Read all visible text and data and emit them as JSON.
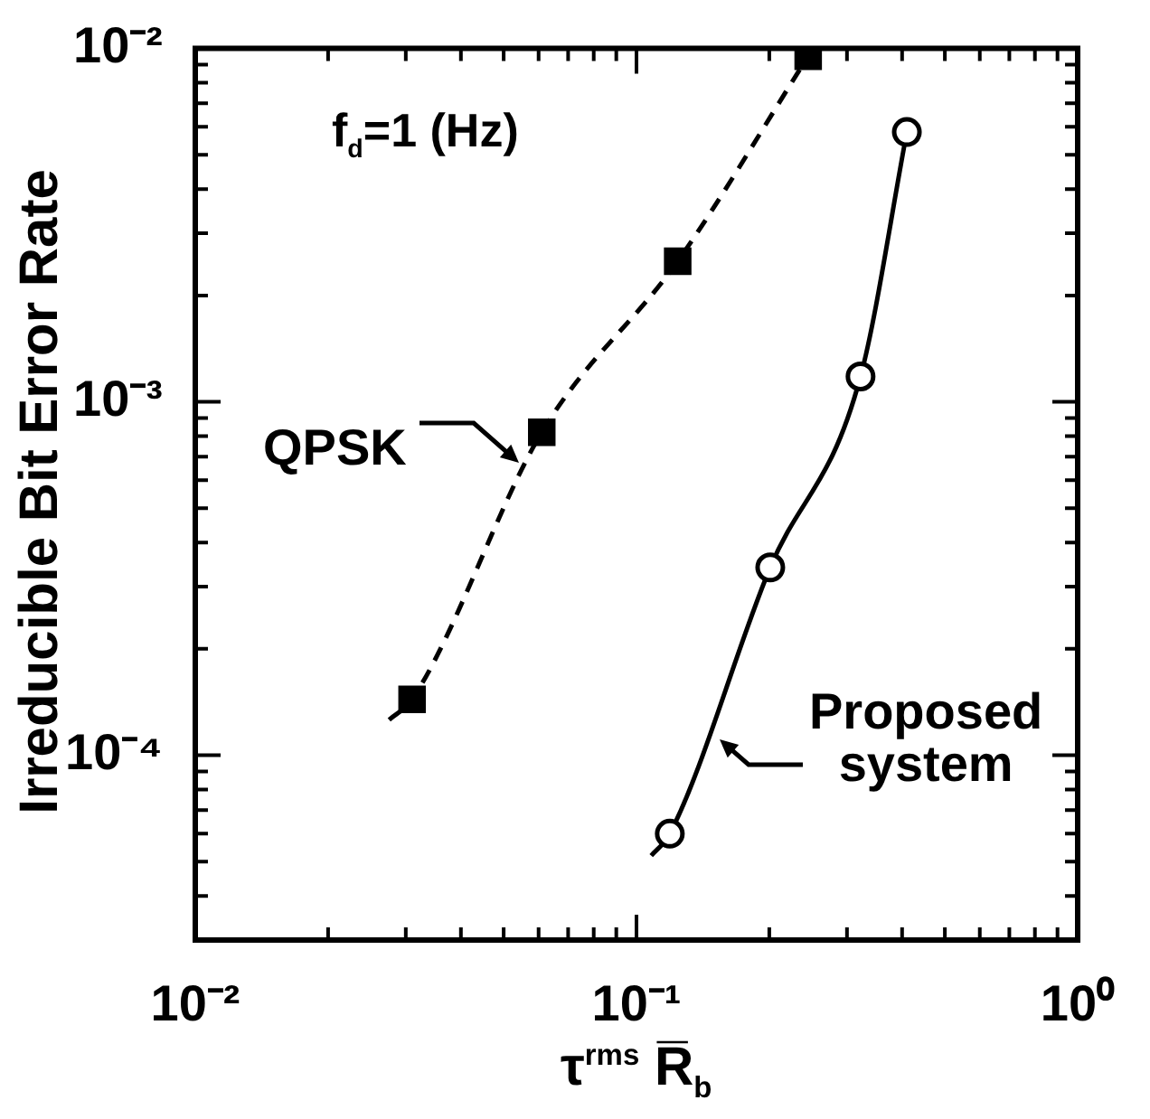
{
  "chart_data": {
    "type": "line",
    "ylabel": "Irreducible Bit  Error Rate",
    "xlabel": "τ$^{rms}$ R̅$_{b}$",
    "log": "xy",
    "grid": false,
    "legend": false,
    "xlim": [
      0.01,
      1
    ],
    "ylim": [
      3e-05,
      0.01
    ],
    "xticks": [
      {
        "value": 0.01,
        "label": "10⁻²"
      },
      {
        "value": 0.02,
        "label": null
      },
      {
        "value": 0.03,
        "label": null
      },
      {
        "value": 0.04,
        "label": null
      },
      {
        "value": 0.05,
        "label": null
      },
      {
        "value": 0.06,
        "label": null
      },
      {
        "value": 0.07,
        "label": null
      },
      {
        "value": 0.08,
        "label": null
      },
      {
        "value": 0.09,
        "label": null
      },
      {
        "value": 0.1,
        "label": "10⁻¹"
      },
      {
        "value": 0.2,
        "label": null
      },
      {
        "value": 0.3,
        "label": null
      },
      {
        "value": 0.4,
        "label": null
      },
      {
        "value": 0.5,
        "label": null
      },
      {
        "value": 0.6,
        "label": null
      },
      {
        "value": 0.7,
        "label": null
      },
      {
        "value": 0.8,
        "label": null
      },
      {
        "value": 0.9,
        "label": null
      },
      {
        "value": 1,
        "label": "10⁰"
      }
    ],
    "yticks": [
      {
        "value": 3e-05,
        "label": null
      },
      {
        "value": 4e-05,
        "label": null
      },
      {
        "value": 5e-05,
        "label": null
      },
      {
        "value": 6e-05,
        "label": null
      },
      {
        "value": 7e-05,
        "label": null
      },
      {
        "value": 8e-05,
        "label": null
      },
      {
        "value": 9e-05,
        "label": null
      },
      {
        "value": 0.0001,
        "label": "10⁻⁴"
      },
      {
        "value": 0.0002,
        "label": null
      },
      {
        "value": 0.0003,
        "label": null
      },
      {
        "value": 0.0004,
        "label": null
      },
      {
        "value": 0.0005,
        "label": null
      },
      {
        "value": 0.0006,
        "label": null
      },
      {
        "value": 0.0007,
        "label": null
      },
      {
        "value": 0.0008,
        "label": null
      },
      {
        "value": 0.0009,
        "label": null
      },
      {
        "value": 0.001,
        "label": "10⁻³"
      },
      {
        "value": 0.002,
        "label": null
      },
      {
        "value": 0.003,
        "label": null
      },
      {
        "value": 0.004,
        "label": null
      },
      {
        "value": 0.005,
        "label": null
      },
      {
        "value": 0.006,
        "label": null
      },
      {
        "value": 0.007,
        "label": null
      },
      {
        "value": 0.008,
        "label": null
      },
      {
        "value": 0.009,
        "label": null
      },
      {
        "value": 0.01,
        "label": "10⁻²"
      }
    ],
    "series": [
      {
        "color": "#000000",
        "marker": "none",
        "line_style": "dashed",
        "x": [
          0.0275,
          0.031,
          0.061,
          0.124,
          0.245
        ],
        "values": [
          0.000126,
          0.000144,
          0.00082,
          0.0025,
          0.0095
        ]
      },
      {
        "type": "scatter",
        "color": "#000000",
        "marker": "square",
        "x": [
          0.031,
          0.061,
          0.124,
          0.245
        ],
        "values": [
          0.000144,
          0.00082,
          0.0025,
          0.0095
        ]
      },
      {
        "color": "#000000",
        "marker": "none",
        "line_style": "solid",
        "x": [
          0.108,
          0.119,
          0.201,
          0.322,
          0.41
        ],
        "values": [
          5.2e-05,
          6e-05,
          0.00034,
          0.00118,
          0.0058
        ]
      },
      {
        "type": "scatter",
        "color": "#000000",
        "marker": "circle",
        "x": [
          0.119,
          0.201,
          0.322,
          0.41
        ],
        "values": [
          6e-05,
          0.00034,
          0.00118,
          0.0058
        ]
      }
    ],
    "annotations": [
      "f$_{d}$=1 (Hz)",
      "QPSK",
      "Proposed system"
    ]
  }
}
